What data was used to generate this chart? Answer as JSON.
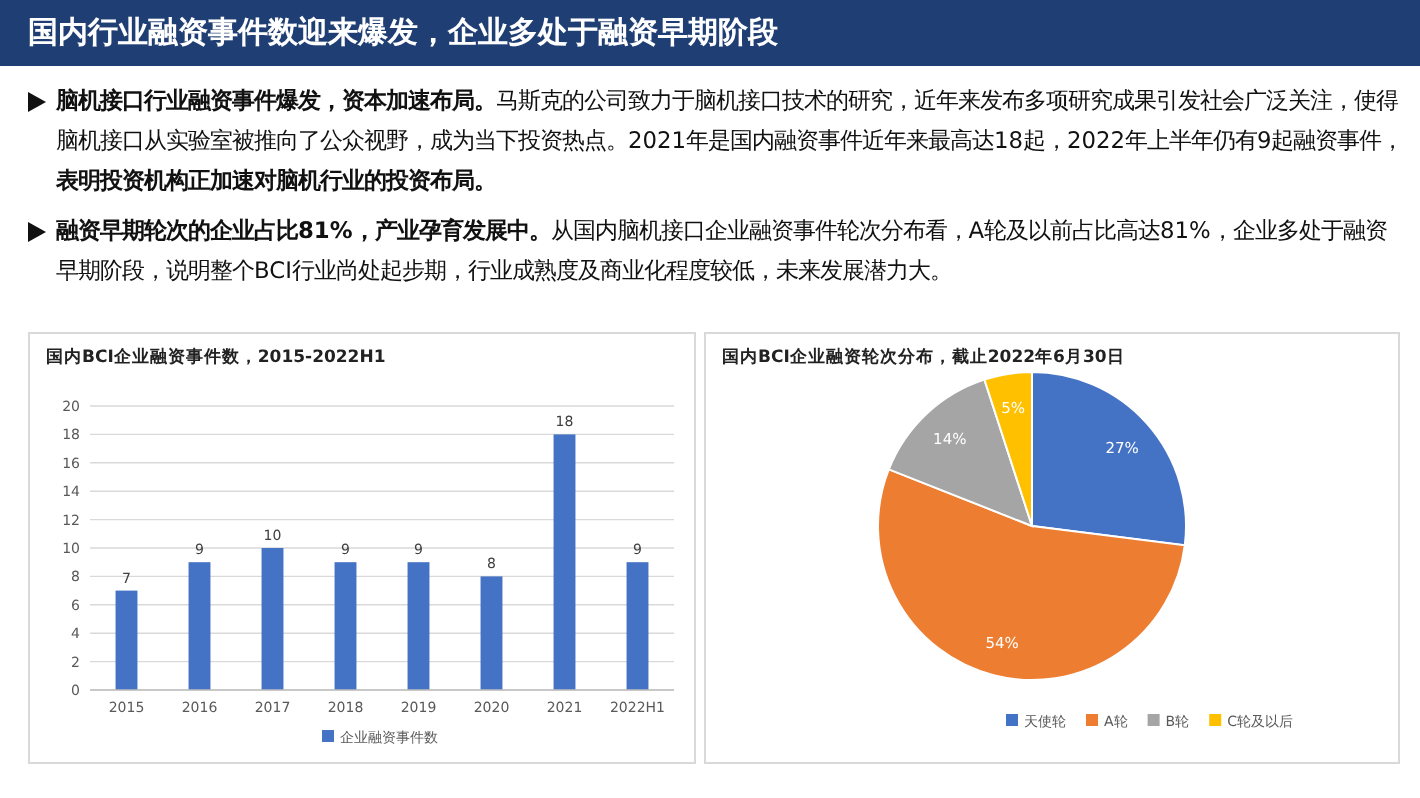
{
  "chart_data": [
    {
      "type": "other",
      "title": "国内行业融资事件数迎来爆发，企业多处于融资早期阶段",
      "annotations": [
        "**脑机接口行业融资事件爆发，资本加速布局。**马斯克的公司致力于脑机接口技术的研究，近年来发布多项研究成果引发社会广泛关注，使得脑机接口从实验室被推向了公众视野，成为当下投资热点。2021年是国内融资事件近年来最高达18起，2022年上半年仍有9起融资事件，**表明投资机构正加速对脑机行业的投资布局。**",
        "**融资早期轮次的企业占比81%，产业孕育发展中。**从国内脑机接口企业融资事件轮次分布看，A轮及以前占比高达81%，企业多处于融资早期阶段，说明整个BCI行业尚处起步期，行业成熟度及商业化程度较低，未来发展潜力大。"
      ]
    },
    {
      "type": "bar",
      "title": "国内BCI企业融资事件数，2015-2022H1",
      "categories": [
        "2015",
        "2016",
        "2017",
        "2018",
        "2019",
        "2020",
        "2021",
        "2022H1"
      ],
      "series": [
        {
          "name": "企业融资事件数",
          "color": "#4472c4",
          "values": [
            7,
            9,
            10,
            9,
            9,
            8,
            18,
            9
          ]
        }
      ],
      "ylim": [
        0,
        20
      ],
      "yticks": [
        0,
        2,
        4,
        6,
        8,
        10,
        12,
        14,
        16,
        18,
        20
      ],
      "grid": "y",
      "legend": "bottom",
      "data_labels": true
    },
    {
      "type": "pie",
      "title": "国内BCI企业融资轮次分布，截止2022年6月30日",
      "categories": [
        "天使轮",
        "A轮",
        "B轮",
        "C轮及以后"
      ],
      "values": [
        27,
        54,
        14,
        5
      ],
      "colors": [
        "#4472c4",
        "#ed7d31",
        "#a5a5a5",
        "#ffc000"
      ],
      "legend": "bottom",
      "value_labels": [
        "27%",
        "54%",
        "14%",
        "5%"
      ]
    }
  ]
}
